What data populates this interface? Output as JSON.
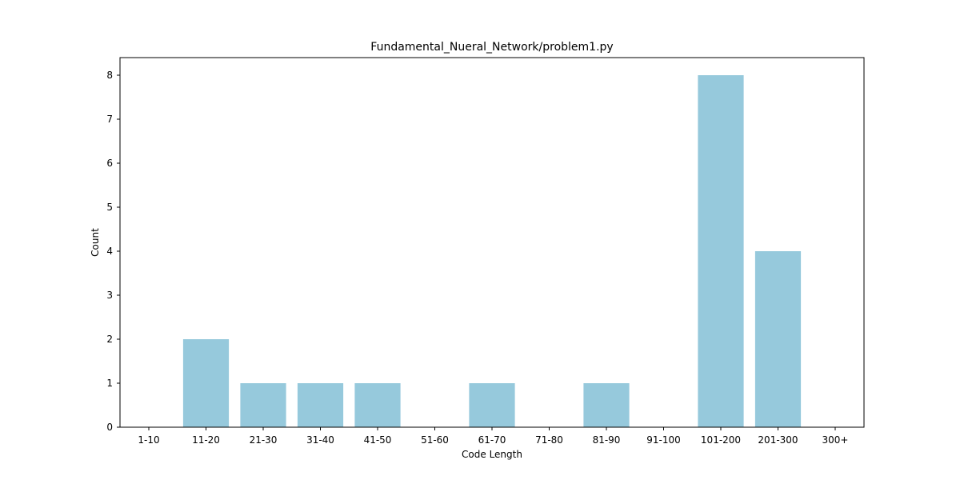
{
  "chart_data": {
    "type": "bar",
    "title": "Fundamental_Nueral_Network/problem1.py",
    "xlabel": "Code Length",
    "ylabel": "Count",
    "categories": [
      "1-10",
      "11-20",
      "21-30",
      "31-40",
      "41-50",
      "51-60",
      "61-70",
      "71-80",
      "81-90",
      "91-100",
      "101-200",
      "201-300",
      "300+"
    ],
    "values": [
      0,
      2,
      1,
      1,
      1,
      0,
      1,
      0,
      1,
      0,
      8,
      4,
      0
    ],
    "ylim": [
      0,
      8.4
    ],
    "yticks": [
      0,
      1,
      2,
      3,
      4,
      5,
      6,
      7,
      8
    ],
    "bar_color": "#96c9dc",
    "grid": false,
    "legend": "none"
  }
}
